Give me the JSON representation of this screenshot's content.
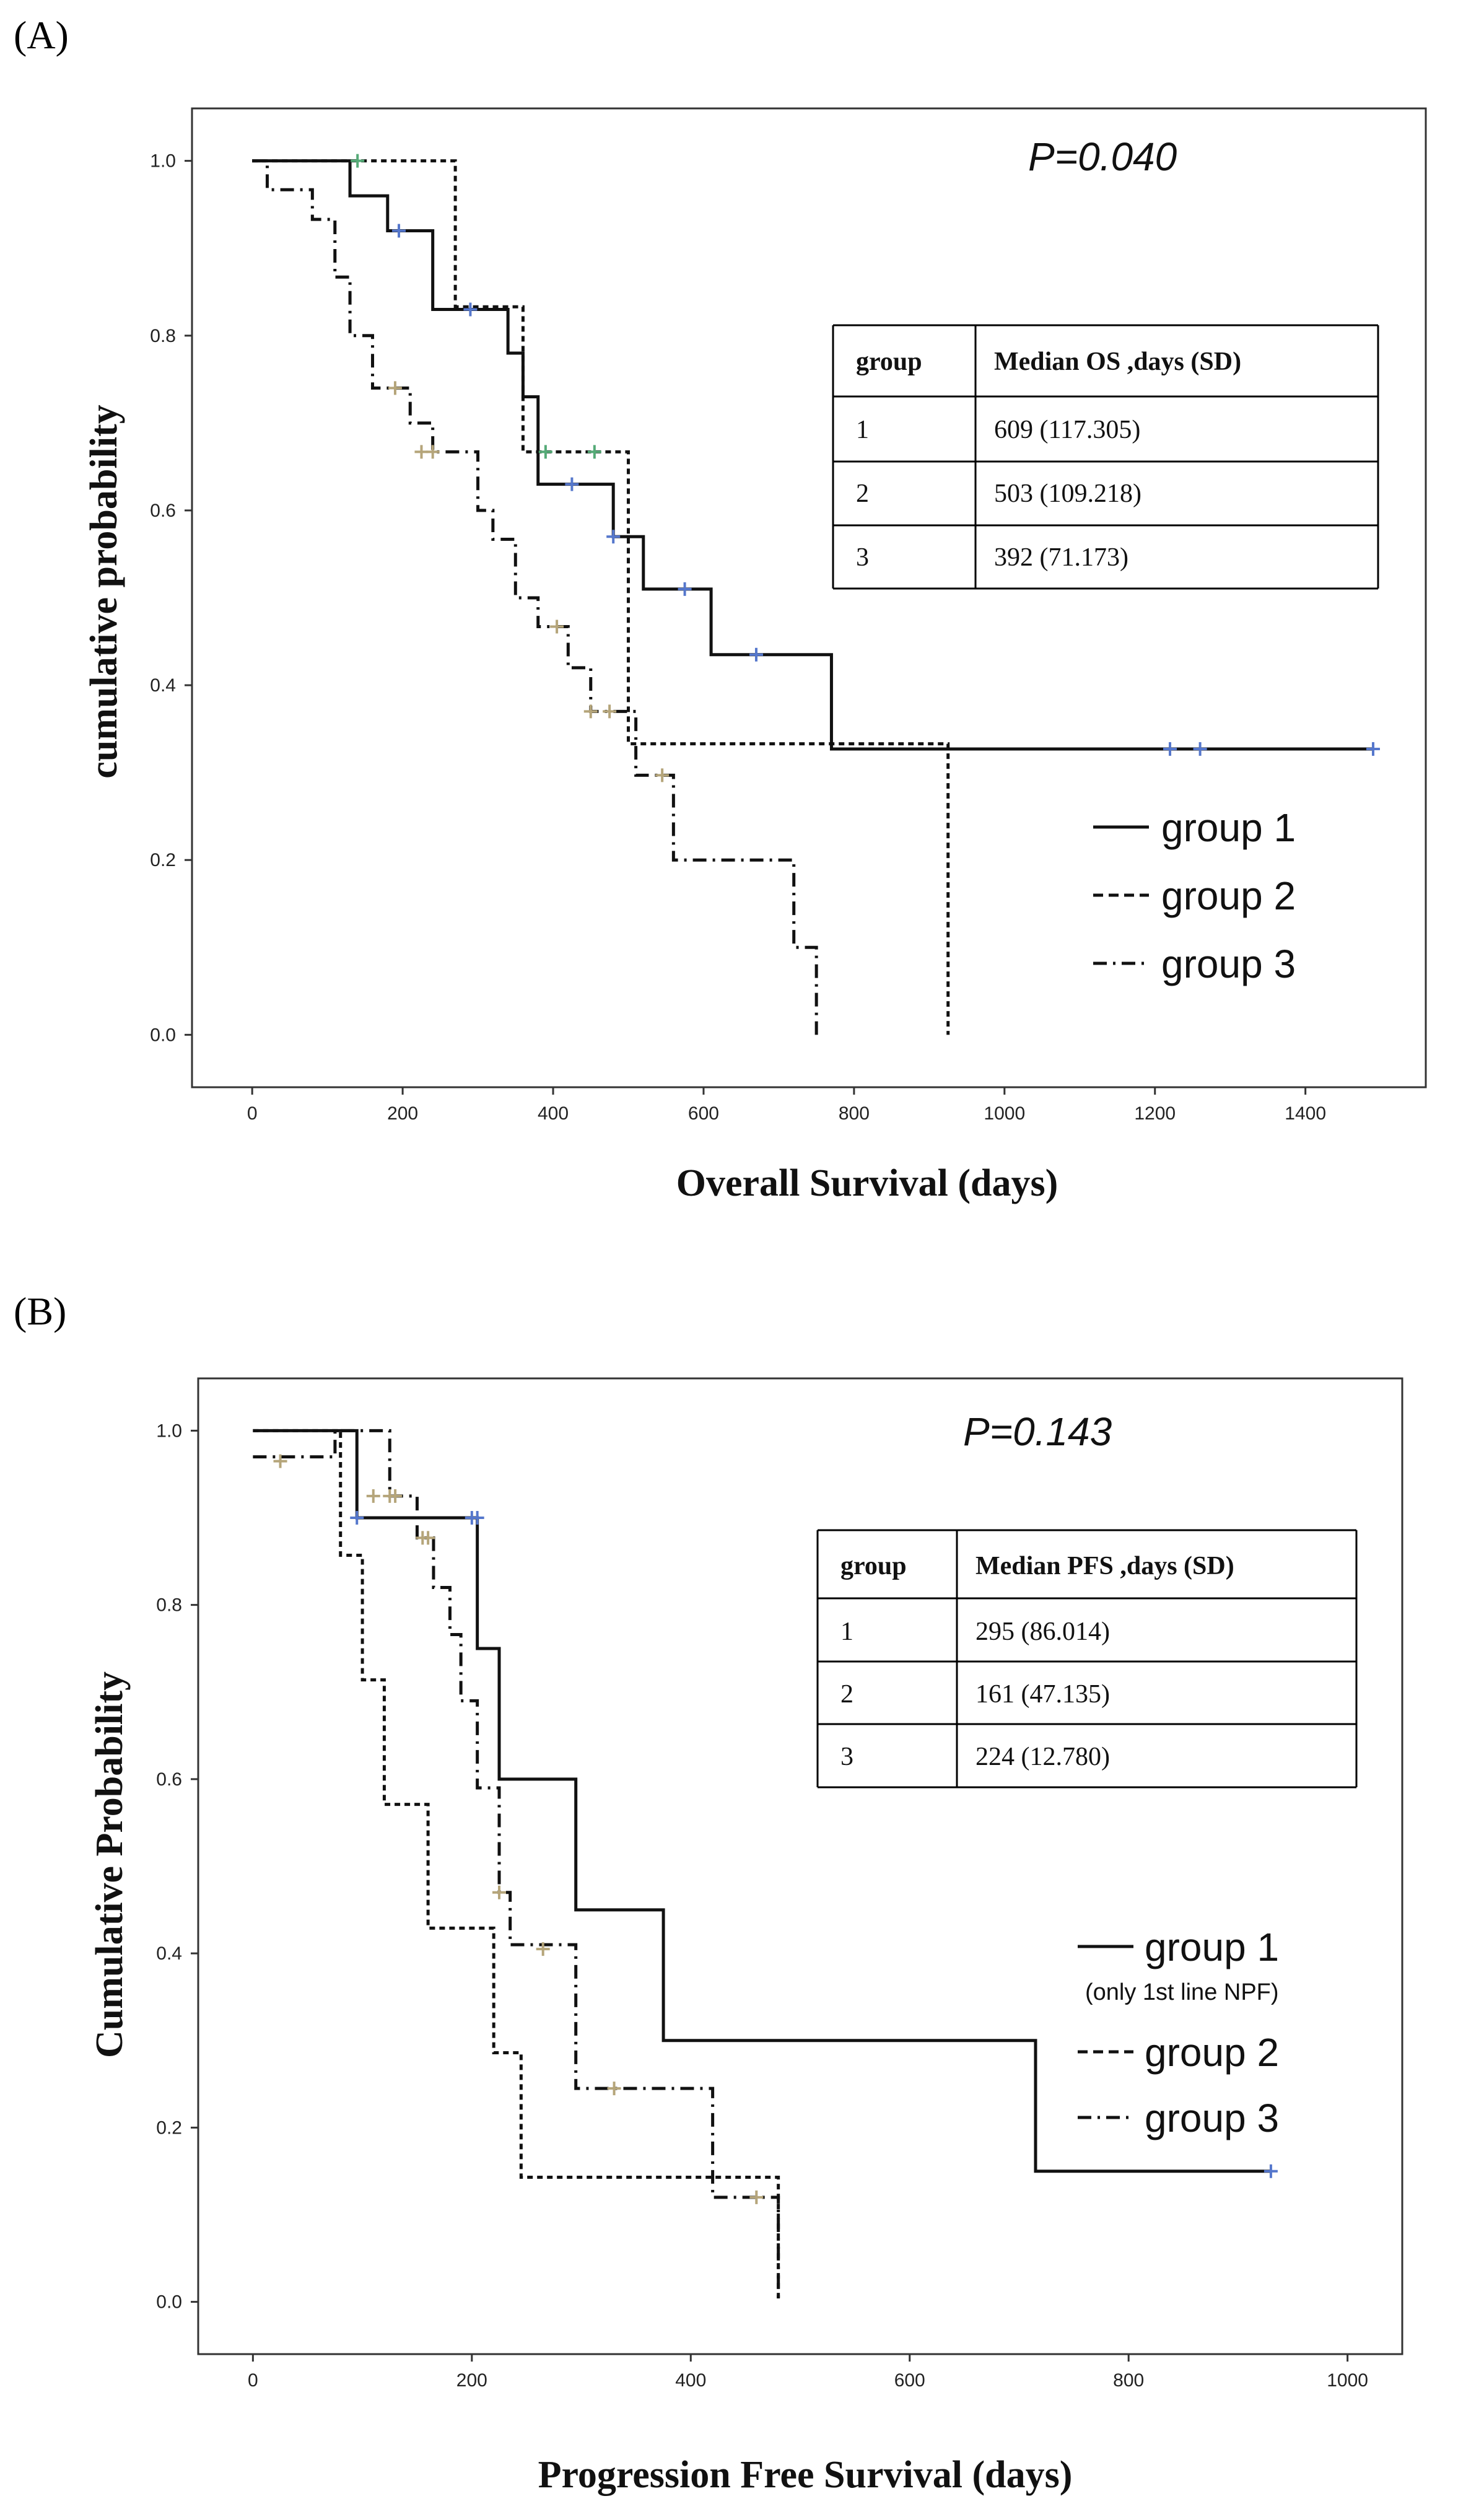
{
  "chart_data": [
    {
      "panel": "(A)",
      "type": "line",
      "subtype": "kaplan-meier step",
      "annotation": "P=0.040",
      "xlabel": "Overall Survival (days)",
      "ylabel": "cumulative probability",
      "xlim": [
        -80,
        1560
      ],
      "ylim": [
        -0.06,
        1.06
      ],
      "xticks": [
        0,
        200,
        400,
        600,
        800,
        1000,
        1200,
        1400
      ],
      "yticks": [
        0.0,
        0.2,
        0.4,
        0.6,
        0.8,
        1.0
      ],
      "grid": false,
      "legend_position": "bottom-right",
      "table": {
        "headers": [
          "group",
          "Median OS ,days (SD)"
        ],
        "rows": [
          [
            "1",
            "609 (117.305)"
          ],
          [
            "2",
            "503 (109.218)"
          ],
          [
            "3",
            "392 (71.173)"
          ]
        ]
      },
      "series": [
        {
          "name": "group 1",
          "style": "solid",
          "x": [
            0,
            130,
            180,
            240,
            340,
            360,
            380,
            480,
            520,
            610,
            770,
            1490
          ],
          "y": [
            1.0,
            0.96,
            0.92,
            0.83,
            0.78,
            0.73,
            0.63,
            0.57,
            0.51,
            0.435,
            0.327,
            0.327
          ],
          "censored": [
            [
              195,
              0.92
            ],
            [
              290,
              0.83
            ],
            [
              425,
              0.63
            ],
            [
              480,
              0.57
            ],
            [
              575,
              0.51
            ],
            [
              670,
              0.435
            ],
            [
              1220,
              0.327
            ],
            [
              1260,
              0.327
            ],
            [
              1490,
              0.327
            ]
          ]
        },
        {
          "name": "group 2",
          "style": "dotted",
          "x": [
            0,
            270,
            360,
            500,
            925,
            925
          ],
          "y": [
            1.0,
            0.833,
            0.667,
            0.333,
            0.333,
            0.0
          ],
          "censored": [
            [
              140,
              1.0
            ],
            [
              390,
              0.667
            ],
            [
              455,
              0.667
            ]
          ]
        },
        {
          "name": "group 3",
          "style": "dash-dot",
          "x": [
            0,
            20,
            80,
            110,
            130,
            160,
            210,
            240,
            300,
            320,
            350,
            380,
            420,
            450,
            510,
            560,
            720,
            750,
            750
          ],
          "y": [
            1.0,
            0.967,
            0.933,
            0.867,
            0.8,
            0.74,
            0.7,
            0.667,
            0.6,
            0.567,
            0.5,
            0.467,
            0.42,
            0.37,
            0.297,
            0.2,
            0.1,
            0.1,
            0.0
          ],
          "censored": [
            [
              190,
              0.74
            ],
            [
              225,
              0.667
            ],
            [
              240,
              0.667
            ],
            [
              405,
              0.467
            ],
            [
              450,
              0.37
            ],
            [
              475,
              0.37
            ],
            [
              545,
              0.297
            ]
          ]
        }
      ]
    },
    {
      "panel": "(B)",
      "type": "line",
      "subtype": "kaplan-meier step",
      "annotation": "P=0.143",
      "xlabel": "Progression Free Survival (days)",
      "ylabel": "Cumulative Probability",
      "xlim": [
        -50,
        1050
      ],
      "ylim": [
        -0.06,
        1.06
      ],
      "xticks": [
        0,
        200,
        400,
        600,
        800,
        1000
      ],
      "yticks": [
        0.0,
        0.2,
        0.4,
        0.6,
        0.8,
        1.0
      ],
      "grid": false,
      "legend_position": "bottom-right",
      "legend_note": "(only 1st line NPF)",
      "table": {
        "headers": [
          "group",
          "Median PFS ,days (SD)"
        ],
        "rows": [
          [
            "1",
            "295 (86.014)"
          ],
          [
            "2",
            "161 (47.135)"
          ],
          [
            "3",
            "224 (12.780)"
          ]
        ]
      },
      "series": [
        {
          "name": "group 1",
          "style": "solid",
          "x": [
            0,
            95,
            205,
            225,
            295,
            375,
            715,
            930
          ],
          "y": [
            1.0,
            0.9,
            0.75,
            0.6,
            0.45,
            0.3,
            0.15,
            0.15
          ],
          "censored": [
            [
              95,
              0.9
            ],
            [
              200,
              0.9
            ],
            [
              205,
              0.9
            ],
            [
              930,
              0.15
            ]
          ]
        },
        {
          "name": "group 2",
          "style": "dotted",
          "x": [
            0,
            80,
            100,
            120,
            160,
            220,
            245,
            480,
            480
          ],
          "y": [
            1.0,
            0.857,
            0.714,
            0.571,
            0.429,
            0.286,
            0.143,
            0.143,
            0.0
          ],
          "censored": []
        },
        {
          "name": "group 3",
          "style": "dash-dot",
          "x": [
            0,
            75,
            125,
            150,
            165,
            180,
            190,
            205,
            225,
            235,
            295,
            295,
            420,
            480,
            480
          ],
          "y": [
            0.97,
            1.0,
            0.925,
            0.877,
            0.82,
            0.766,
            0.69,
            0.59,
            0.47,
            0.41,
            0.27,
            0.245,
            0.12,
            0.12,
            0.0
          ],
          "censored": [
            [
              25,
              0.965
            ],
            [
              110,
              0.925
            ],
            [
              125,
              0.925
            ],
            [
              130,
              0.925
            ],
            [
              155,
              0.877
            ],
            [
              160,
              0.877
            ],
            [
              225,
              0.47
            ],
            [
              265,
              0.405
            ],
            [
              330,
              0.245
            ],
            [
              460,
              0.12
            ]
          ]
        }
      ]
    }
  ],
  "colors": {
    "line": "#111111",
    "censor_blue": "#5577cc",
    "censor_green": "#55aa77",
    "censor_tan": "#b5a57a",
    "frame": "#333333"
  }
}
